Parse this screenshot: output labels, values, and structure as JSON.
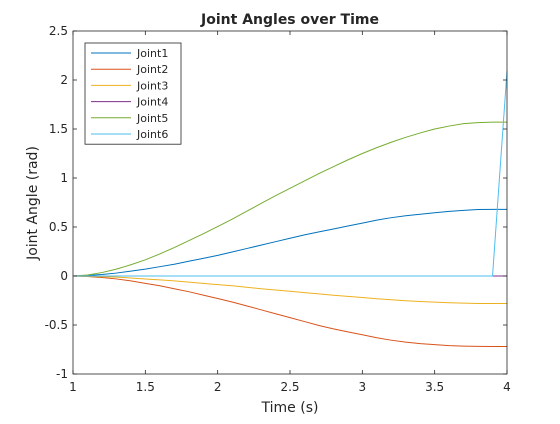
{
  "colors": {
    "background": "#ffffff",
    "axis": "#262626",
    "Joint1": "#0072BD",
    "Joint2": "#D95319",
    "Joint3": "#EDB120",
    "Joint4": "#7E2F8E",
    "Joint5": "#77AC30",
    "Joint6": "#4DBEEE"
  },
  "chart_data": {
    "type": "line",
    "title": "Joint Angles over Time",
    "xlabel": "Time (s)",
    "ylabel": "Joint Angle (rad)",
    "xlim": [
      1,
      4
    ],
    "ylim": [
      -1,
      2.5
    ],
    "xticks": [
      1,
      1.5,
      2,
      2.5,
      3,
      3.5,
      4
    ],
    "xtick_labels": [
      "1",
      "1.5",
      "2",
      "2.5",
      "3",
      "3.5",
      "4"
    ],
    "yticks": [
      -1,
      -0.5,
      0,
      0.5,
      1,
      1.5,
      2,
      2.5
    ],
    "ytick_labels": [
      "-1",
      "-0.5",
      "0",
      "0.5",
      "1",
      "1.5",
      "2",
      "2.5"
    ],
    "grid": false,
    "legend_position": "top-left",
    "x": [
      1,
      1.1,
      1.2,
      1.3,
      1.4,
      1.5,
      1.6,
      1.7,
      1.8,
      1.9,
      2,
      2.1,
      2.2,
      2.3,
      2.4,
      2.5,
      2.6,
      2.7,
      2.8,
      2.9,
      3,
      3.1,
      3.2,
      3.3,
      3.4,
      3.5,
      3.6,
      3.7,
      3.8,
      3.9,
      4
    ],
    "series": [
      {
        "name": "Joint1",
        "values": [
          0.0,
          0.005,
          0.015,
          0.03,
          0.05,
          0.07,
          0.095,
          0.12,
          0.15,
          0.18,
          0.21,
          0.245,
          0.28,
          0.315,
          0.35,
          0.385,
          0.42,
          0.45,
          0.48,
          0.51,
          0.54,
          0.57,
          0.595,
          0.615,
          0.63,
          0.645,
          0.66,
          0.67,
          0.678,
          0.68,
          0.68
        ]
      },
      {
        "name": "Joint2",
        "values": [
          0.0,
          -0.005,
          -0.015,
          -0.03,
          -0.05,
          -0.075,
          -0.1,
          -0.13,
          -0.16,
          -0.195,
          -0.23,
          -0.265,
          -0.305,
          -0.345,
          -0.385,
          -0.425,
          -0.465,
          -0.505,
          -0.54,
          -0.57,
          -0.6,
          -0.63,
          -0.655,
          -0.675,
          -0.69,
          -0.7,
          -0.71,
          -0.715,
          -0.718,
          -0.72,
          -0.72
        ]
      },
      {
        "name": "Joint3",
        "values": [
          0.0,
          -0.002,
          -0.006,
          -0.012,
          -0.02,
          -0.03,
          -0.04,
          -0.05,
          -0.062,
          -0.075,
          -0.088,
          -0.1,
          -0.115,
          -0.13,
          -0.143,
          -0.156,
          -0.17,
          -0.183,
          -0.196,
          -0.208,
          -0.22,
          -0.232,
          -0.243,
          -0.252,
          -0.26,
          -0.267,
          -0.273,
          -0.277,
          -0.28,
          -0.281,
          -0.281
        ]
      },
      {
        "name": "Joint4",
        "values": [
          0,
          0,
          0,
          0,
          0,
          0,
          0,
          0,
          0,
          0,
          0,
          0,
          0,
          0,
          0,
          0,
          0,
          0,
          0,
          0,
          0,
          0,
          0,
          0,
          0,
          0,
          0,
          0,
          0,
          0,
          0
        ]
      },
      {
        "name": "Joint5",
        "values": [
          0.0,
          0.01,
          0.035,
          0.07,
          0.115,
          0.165,
          0.225,
          0.29,
          0.36,
          0.43,
          0.505,
          0.58,
          0.66,
          0.74,
          0.82,
          0.895,
          0.97,
          1.045,
          1.115,
          1.185,
          1.25,
          1.31,
          1.365,
          1.415,
          1.46,
          1.5,
          1.53,
          1.555,
          1.565,
          1.57,
          1.57
        ]
      },
      {
        "name": "Joint6",
        "points": [
          [
            1,
            0
          ],
          [
            3.9,
            0
          ],
          [
            4,
            2.09
          ]
        ]
      }
    ]
  }
}
